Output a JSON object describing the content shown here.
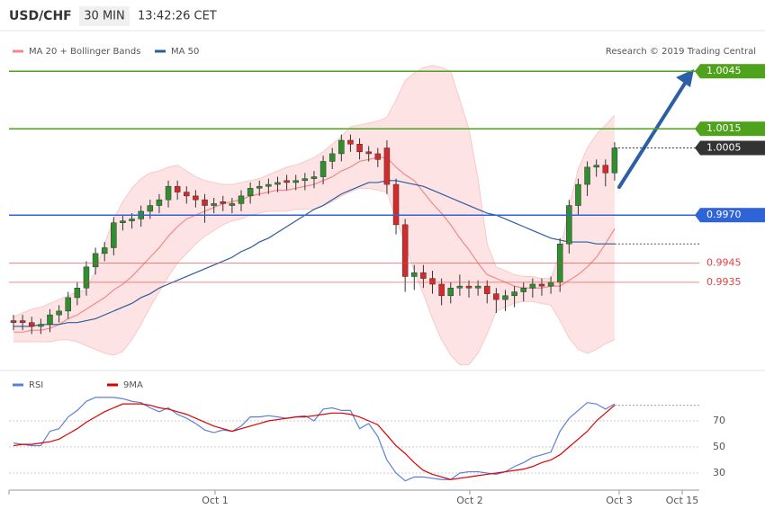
{
  "chart_data": {
    "type": "candlestick",
    "title": "USD/CHF",
    "timeframe": "30 MIN",
    "time": "13:42:26 CET",
    "credit": "Research © 2019 Trading Central",
    "x_labels": [
      "Oct 1",
      "Oct 2",
      "Oct 3",
      "Oct 15"
    ],
    "ylim": [
      0.9889,
      1.0054
    ],
    "up_color": "#2f8f2f",
    "down_color": "#d42a2a",
    "open": [
      0.9915,
      0.9915,
      0.9914,
      0.9912,
      0.9913,
      0.9918,
      0.992,
      0.9927,
      0.9932,
      0.9943,
      0.995,
      0.9953,
      0.9966,
      0.9967,
      0.9968,
      0.9972,
      0.9975,
      0.9978,
      0.9985,
      0.9982,
      0.998,
      0.9978,
      0.9975,
      0.9977,
      0.9975,
      0.9976,
      0.998,
      0.9984,
      0.9985,
      0.9986,
      0.9988,
      0.9987,
      0.9988,
      0.9989,
      0.999,
      0.9998,
      1.0002,
      1.0009,
      1.0007,
      1.0003,
      1.0002,
      1.0005,
      0.9986,
      0.9965,
      0.9938,
      0.994,
      0.9937,
      0.9934,
      0.9928,
      0.9932,
      0.9933,
      0.9932,
      0.9933,
      0.9929,
      0.9926,
      0.9928,
      0.993,
      0.9932,
      0.9934,
      0.9933,
      0.9935,
      0.9955,
      0.9975,
      0.9986,
      0.9995,
      0.9996,
      0.9992
    ],
    "high": [
      0.9918,
      0.9918,
      0.9917,
      0.9916,
      0.9921,
      0.9923,
      0.993,
      0.9935,
      0.9946,
      0.9953,
      0.9956,
      0.9969,
      0.997,
      0.9971,
      0.9975,
      0.9978,
      0.9981,
      0.9988,
      0.9988,
      0.9985,
      0.9983,
      0.9981,
      0.9979,
      0.998,
      0.9979,
      0.9983,
      0.9987,
      0.9988,
      0.9989,
      0.999,
      0.9991,
      0.9991,
      0.9992,
      0.9993,
      1.0001,
      1.0005,
      1.0012,
      1.0012,
      1.001,
      1.0006,
      1.0005,
      1.0009,
      0.9989,
      0.9968,
      0.9944,
      0.9944,
      0.9941,
      0.9937,
      0.9935,
      0.9939,
      0.9936,
      0.9936,
      0.9936,
      0.9932,
      0.9931,
      0.9933,
      0.9935,
      0.9937,
      0.9937,
      0.9938,
      0.9958,
      0.9978,
      0.9989,
      0.9998,
      0.9999,
      0.9999,
      1.0008
    ],
    "low": [
      0.991,
      0.991,
      0.9908,
      0.9908,
      0.9909,
      0.9914,
      0.9916,
      0.9923,
      0.9928,
      0.9939,
      0.9946,
      0.9949,
      0.9962,
      0.9963,
      0.9964,
      0.9968,
      0.9971,
      0.9974,
      0.9978,
      0.9976,
      0.9974,
      0.9966,
      0.9971,
      0.9972,
      0.9971,
      0.9972,
      0.9976,
      0.998,
      0.9981,
      0.9982,
      0.9983,
      0.9983,
      0.9983,
      0.9984,
      0.9986,
      0.9994,
      0.9998,
      1.0003,
      0.9999,
      0.9998,
      0.9995,
      0.9981,
      0.996,
      0.993,
      0.9931,
      0.9932,
      0.9929,
      0.9923,
      0.9924,
      0.9928,
      0.9927,
      0.9928,
      0.9924,
      0.9919,
      0.992,
      0.9922,
      0.9925,
      0.9927,
      0.9928,
      0.9929,
      0.993,
      0.995,
      0.997,
      0.998,
      0.999,
      0.9985,
      0.9988
    ],
    "close": [
      0.9914,
      0.9914,
      0.9912,
      0.9913,
      0.9918,
      0.992,
      0.9927,
      0.9932,
      0.9943,
      0.995,
      0.9953,
      0.9966,
      0.9967,
      0.9968,
      0.9972,
      0.9975,
      0.9978,
      0.9985,
      0.9982,
      0.998,
      0.9978,
      0.9975,
      0.9976,
      0.9976,
      0.9976,
      0.998,
      0.9984,
      0.9985,
      0.9986,
      0.9987,
      0.9987,
      0.9988,
      0.9989,
      0.999,
      0.9998,
      1.0002,
      1.0009,
      1.0007,
      1.0003,
      1.0002,
      0.9999,
      0.9986,
      0.9965,
      0.9938,
      0.994,
      0.9937,
      0.9934,
      0.9928,
      0.9932,
      0.9933,
      0.9932,
      0.9933,
      0.9929,
      0.9926,
      0.9928,
      0.993,
      0.9932,
      0.9934,
      0.9933,
      0.9935,
      0.9955,
      0.9975,
      0.9986,
      0.9995,
      0.9996,
      0.9992,
      1.0005
    ],
    "indicators": [
      {
        "name": "MA 20 + Bollinger Bands",
        "color": "#f08a8a",
        "band_color": "#fde3e3",
        "values": [
          0.9909,
          0.9909,
          0.991,
          0.991,
          0.9911,
          0.9913,
          0.9916,
          0.9918,
          0.9921,
          0.9924,
          0.9927,
          0.9931,
          0.9934,
          0.9938,
          0.9943,
          0.9948,
          0.9953,
          0.9959,
          0.9964,
          0.9968,
          0.997,
          0.9972,
          0.9974,
          0.9976,
          0.9977,
          0.9978,
          0.998,
          0.9981,
          0.9982,
          0.9983,
          0.9983,
          0.9984,
          0.9985,
          0.9986,
          0.9988,
          0.999,
          0.9993,
          0.9995,
          0.9998,
          0.9999,
          1.0,
          1.0,
          0.9995,
          0.9991,
          0.9988,
          0.9982,
          0.9976,
          0.9971,
          0.9965,
          0.9958,
          0.9952,
          0.9945,
          0.9939,
          0.9937,
          0.9935,
          0.9933,
          0.9932,
          0.9932,
          0.9932,
          0.9933,
          0.9933,
          0.9936,
          0.9939,
          0.9943,
          0.9948,
          0.9955,
          0.9963
        ],
        "upper": [
          0.9917,
          0.9919,
          0.9921,
          0.9922,
          0.9924,
          0.9926,
          0.9928,
          0.993,
          0.9931,
          0.9941,
          0.9955,
          0.9968,
          0.9977,
          0.9984,
          0.9989,
          0.9992,
          0.9993,
          0.9995,
          0.9996,
          0.9993,
          0.999,
          0.9988,
          0.9987,
          0.9986,
          0.9986,
          0.9987,
          0.9988,
          0.9989,
          0.9991,
          0.9993,
          0.9995,
          0.9996,
          0.9998,
          1.0,
          1.0003,
          1.0007,
          1.0011,
          1.0016,
          1.0017,
          1.0018,
          1.0019,
          1.0021,
          1.003,
          1.004,
          1.0044,
          1.0047,
          1.0048,
          1.0047,
          1.0045,
          1.003,
          1.0015,
          0.9989,
          0.9955,
          0.9943,
          0.9941,
          0.9939,
          0.9938,
          0.9938,
          0.9937,
          0.9937,
          0.995,
          0.9974,
          0.9994,
          1.0005,
          1.0012,
          1.0017,
          1.0022
        ],
        "lower": [
          0.9904,
          0.9904,
          0.9904,
          0.9904,
          0.9904,
          0.9905,
          0.9905,
          0.9904,
          0.9902,
          0.99,
          0.9898,
          0.9897,
          0.9899,
          0.9905,
          0.9913,
          0.9922,
          0.993,
          0.9938,
          0.9945,
          0.995,
          0.9955,
          0.9959,
          0.9962,
          0.9965,
          0.9967,
          0.9968,
          0.997,
          0.9971,
          0.9972,
          0.9972,
          0.9972,
          0.9973,
          0.9973,
          0.9973,
          0.9975,
          0.9977,
          0.998,
          0.9982,
          0.9984,
          0.9984,
          0.9983,
          0.9982,
          0.9968,
          0.9955,
          0.9941,
          0.9929,
          0.9916,
          0.9905,
          0.9897,
          0.9892,
          0.9892,
          0.9898,
          0.9908,
          0.992,
          0.9922,
          0.9924,
          0.9925,
          0.9925,
          0.9924,
          0.9923,
          0.9915,
          0.9906,
          0.99,
          0.9898,
          0.99,
          0.9903,
          0.9905
        ]
      },
      {
        "name": "MA 50",
        "color": "#2b5c9e",
        "values": [
          0.9912,
          0.9912,
          0.9912,
          0.9913,
          0.9913,
          0.9913,
          0.9914,
          0.9914,
          0.9915,
          0.9916,
          0.9918,
          0.992,
          0.9922,
          0.9924,
          0.9927,
          0.9929,
          0.9932,
          0.9934,
          0.9936,
          0.9938,
          0.994,
          0.9942,
          0.9944,
          0.9946,
          0.9948,
          0.9951,
          0.9953,
          0.9956,
          0.9958,
          0.9961,
          0.9964,
          0.9967,
          0.997,
          0.9973,
          0.9975,
          0.9978,
          0.9981,
          0.9983,
          0.9985,
          0.9987,
          0.9987,
          0.9988,
          0.9988,
          0.9987,
          0.9986,
          0.9985,
          0.9983,
          0.9981,
          0.9979,
          0.9977,
          0.9975,
          0.9973,
          0.9971,
          0.997,
          0.9968,
          0.9966,
          0.9964,
          0.9962,
          0.996,
          0.9958,
          0.9957,
          0.9956,
          0.9956,
          0.9956,
          0.9955,
          0.9955,
          0.9955
        ]
      }
    ],
    "levels": [
      {
        "value": 1.0045,
        "color": "#4fa21c",
        "style": "solid",
        "boxed": true
      },
      {
        "value": 1.0015,
        "color": "#4fa21c",
        "style": "solid",
        "boxed": true
      },
      {
        "value": 1.0005,
        "color": "#333333",
        "style": "dotted",
        "boxed": true
      },
      {
        "value": 0.997,
        "label": "0.9970",
        "color": "#2f63d8",
        "style": "solid",
        "boxed": true
      },
      {
        "value": 0.9945,
        "color": "#e84040",
        "style": "solid",
        "boxed": false
      },
      {
        "value": 0.9935,
        "color": "#e84040",
        "style": "solid",
        "boxed": false
      }
    ],
    "rsi": {
      "ylim": [
        20,
        90
      ],
      "yticks": [
        30,
        50,
        70
      ],
      "series": [
        {
          "name": "RSI",
          "color": "#5b80d8",
          "values": [
            53,
            52,
            51,
            51,
            62,
            64,
            73,
            78,
            85,
            88,
            88,
            88,
            87,
            85,
            84,
            80,
            77,
            80,
            75,
            72,
            68,
            63,
            61,
            63,
            62,
            66,
            73,
            73,
            74,
            73,
            72,
            73,
            74,
            70,
            79,
            80,
            78,
            78,
            64,
            68,
            58,
            40,
            30,
            24,
            27,
            27,
            26,
            25,
            25,
            30,
            31,
            31,
            30,
            29,
            31,
            35,
            38,
            42,
            44,
            46,
            62,
            72,
            78,
            84,
            83,
            79,
            83
          ]
        },
        {
          "name": "9MA",
          "color": "#e00000",
          "values": [
            51,
            52,
            52,
            53,
            54,
            56,
            60,
            64,
            69,
            73,
            77,
            80,
            83,
            83,
            83,
            82,
            80,
            79,
            77,
            75,
            72,
            69,
            66,
            64,
            62,
            64,
            66,
            68,
            70,
            71,
            72,
            73,
            73,
            74,
            75,
            76,
            76,
            75,
            73,
            70,
            67,
            59,
            51,
            45,
            38,
            32,
            29,
            27,
            25,
            26,
            27,
            28,
            29,
            30,
            31,
            32,
            33,
            35,
            38,
            40,
            44,
            50,
            56,
            62,
            70,
            76,
            82
          ]
        }
      ]
    }
  }
}
